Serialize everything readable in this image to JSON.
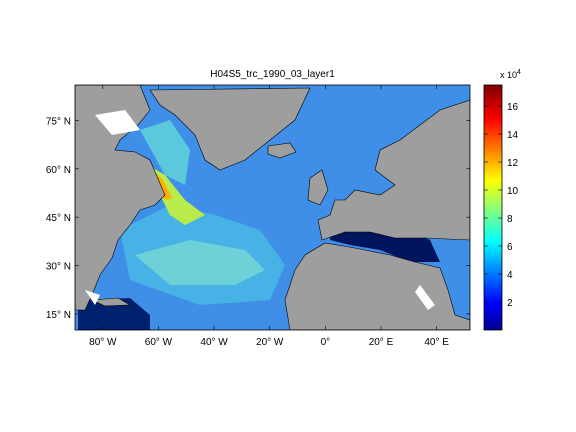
{
  "title": "H04S5_trc_1990_03_layer1",
  "colorbar": {
    "multiplier": "x 10",
    "exponent": "4",
    "ticks": [
      {
        "label": "2",
        "value": 2
      },
      {
        "label": "4",
        "value": 4
      },
      {
        "label": "6",
        "value": 6
      },
      {
        "label": "8",
        "value": 8
      },
      {
        "label": "10",
        "value": 10
      },
      {
        "label": "12",
        "value": 12
      },
      {
        "label": "14",
        "value": 14
      },
      {
        "label": "16",
        "value": 16
      }
    ],
    "range": [
      0,
      17.5
    ],
    "colormap": "jet"
  },
  "lon_ticks": [
    {
      "label": "80° W",
      "value": -80
    },
    {
      "label": "60° W",
      "value": -60
    },
    {
      "label": "40° W",
      "value": -40
    },
    {
      "label": "20° W",
      "value": -20
    },
    {
      "label": "0°",
      "value": 0
    },
    {
      "label": "20° E",
      "value": 20
    },
    {
      "label": "40° E",
      "value": 40
    }
  ],
  "lat_ticks": [
    {
      "label": "15° N",
      "value": 15
    },
    {
      "label": "30° N",
      "value": 30
    },
    {
      "label": "45° N",
      "value": 45
    },
    {
      "label": "60° N",
      "value": 60
    },
    {
      "label": "75° N",
      "value": 75
    }
  ],
  "colors": {
    "land": "#9e9e9e",
    "missing": "#ffffff"
  }
}
